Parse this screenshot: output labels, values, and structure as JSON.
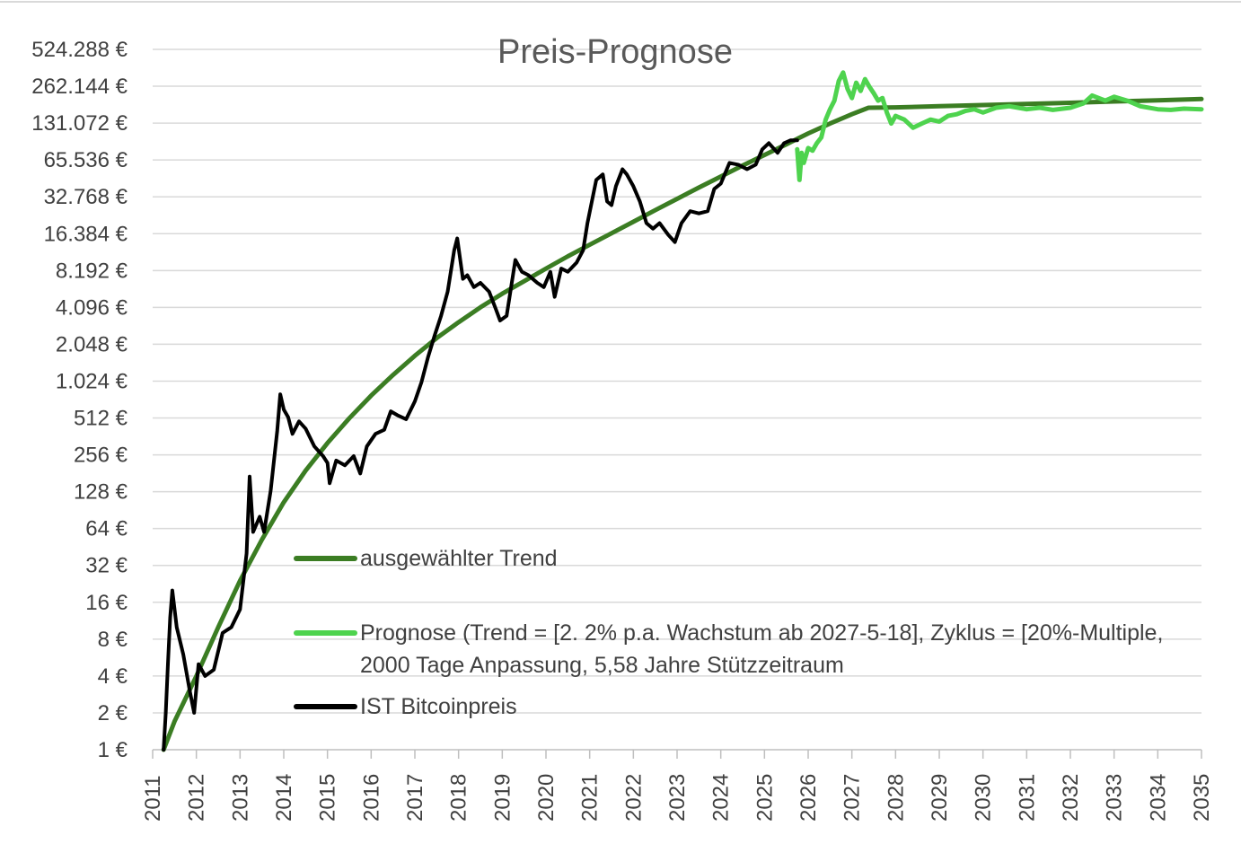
{
  "chart_data": {
    "type": "line",
    "title": "Preis-Prognose",
    "y_scale": "log2",
    "ylim": [
      1,
      524288
    ],
    "y_ticks": [
      1,
      2,
      4,
      8,
      16,
      32,
      64,
      128,
      256,
      512,
      1024,
      2048,
      4096,
      8192,
      16384,
      32768,
      65536,
      131072,
      262144,
      524288
    ],
    "y_tick_labels": [
      "1 €",
      "2 €",
      "4 €",
      "8 €",
      "16 €",
      "32 €",
      "64 €",
      "128 €",
      "256 €",
      "512 €",
      "1.024 €",
      "2.048 €",
      "4.096 €",
      "8.192 €",
      "16.384 €",
      "32.768 €",
      "65.536 €",
      "131.072 €",
      "262.144 €",
      "524.288 €"
    ],
    "xlim": [
      2011,
      2035
    ],
    "x_ticks": [
      "2011",
      "2012",
      "2013",
      "2014",
      "2015",
      "2016",
      "2017",
      "2018",
      "2019",
      "2020",
      "2021",
      "2022",
      "2023",
      "2024",
      "2025",
      "2026",
      "2027",
      "2028",
      "2029",
      "2030",
      "2031",
      "2032",
      "2033",
      "2034",
      "2035"
    ],
    "grid": true,
    "legend_position": "lower-right inside plot",
    "series": [
      {
        "name": "ausgewählter Trend",
        "color": "#3b7d23",
        "x": [
          2011.25,
          2011.5,
          2012.0,
          2012.5,
          2013.0,
          2013.5,
          2014.0,
          2014.5,
          2015.0,
          2015.5,
          2016.0,
          2016.5,
          2017.0,
          2017.5,
          2018.0,
          2018.5,
          2019.0,
          2019.5,
          2020.0,
          2020.5,
          2021.0,
          2021.5,
          2022.0,
          2022.5,
          2023.0,
          2023.5,
          2024.0,
          2024.5,
          2025.0,
          2025.5,
          2026.0,
          2026.5,
          2027.0,
          2027.38,
          2028.0,
          2029.0,
          2030.0,
          2031.0,
          2032.0,
          2033.0,
          2034.0,
          2035.0
        ],
        "values": [
          1,
          1.7,
          4,
          10,
          24,
          52,
          105,
          190,
          320,
          510,
          780,
          1150,
          1650,
          2300,
          3100,
          4100,
          5300,
          6700,
          8500,
          10700,
          13300,
          16500,
          20500,
          25500,
          31500,
          39000,
          48000,
          59000,
          72000,
          88000,
          108000,
          130000,
          155000,
          175000,
          176000,
          180000,
          184000,
          188000,
          192000,
          197000,
          201000,
          206000
        ]
      },
      {
        "name": "Prognose (Trend = [2. 2% p.a. Wachstum ab 2027-5-18], Zyklus = [20%-Multiple, 2000 Tage Anpassung, 5,58 Jahre Stützzeitraum",
        "color": "#4ed34e",
        "x": [
          2025.75,
          2025.8,
          2025.85,
          2025.9,
          2026.0,
          2026.1,
          2026.2,
          2026.3,
          2026.4,
          2026.5,
          2026.6,
          2026.7,
          2026.8,
          2026.9,
          2027.0,
          2027.1,
          2027.2,
          2027.3,
          2027.4,
          2027.5,
          2027.6,
          2027.7,
          2027.8,
          2027.9,
          2028.0,
          2028.2,
          2028.4,
          2028.6,
          2028.8,
          2029.0,
          2029.2,
          2029.4,
          2029.6,
          2029.8,
          2030.0,
          2030.3,
          2030.6,
          2031.0,
          2031.3,
          2031.6,
          2032.0,
          2032.3,
          2032.5,
          2032.8,
          2033.0,
          2033.3,
          2033.6,
          2034.0,
          2034.3,
          2034.6,
          2035.0
        ],
        "values": [
          80000,
          45000,
          75000,
          62000,
          82000,
          78000,
          90000,
          100000,
          140000,
          170000,
          200000,
          290000,
          340000,
          250000,
          210000,
          280000,
          240000,
          300000,
          260000,
          230000,
          200000,
          210000,
          160000,
          130000,
          150000,
          140000,
          120000,
          130000,
          140000,
          135000,
          150000,
          155000,
          165000,
          170000,
          160000,
          175000,
          180000,
          170000,
          175000,
          168000,
          175000,
          190000,
          220000,
          200000,
          215000,
          200000,
          180000,
          170000,
          168000,
          172000,
          170000
        ]
      },
      {
        "name": "IST Bitcoinpreis",
        "color": "#000000",
        "x": [
          2011.25,
          2011.3,
          2011.35,
          2011.4,
          2011.45,
          2011.55,
          2011.7,
          2011.85,
          2011.95,
          2012.05,
          2012.2,
          2012.4,
          2012.6,
          2012.8,
          2013.0,
          2013.15,
          2013.22,
          2013.3,
          2013.45,
          2013.55,
          2013.7,
          2013.85,
          2013.92,
          2014.0,
          2014.1,
          2014.2,
          2014.35,
          2014.5,
          2014.7,
          2014.9,
          2015.0,
          2015.05,
          2015.2,
          2015.4,
          2015.6,
          2015.75,
          2015.9,
          2016.1,
          2016.3,
          2016.45,
          2016.6,
          2016.8,
          2017.0,
          2017.15,
          2017.3,
          2017.45,
          2017.6,
          2017.75,
          2017.9,
          2017.97,
          2018.1,
          2018.2,
          2018.35,
          2018.5,
          2018.7,
          2018.85,
          2018.95,
          2019.1,
          2019.3,
          2019.45,
          2019.6,
          2019.8,
          2019.95,
          2020.1,
          2020.2,
          2020.35,
          2020.5,
          2020.7,
          2020.85,
          2020.95,
          2021.05,
          2021.15,
          2021.3,
          2021.4,
          2021.5,
          2021.6,
          2021.75,
          2021.85,
          2022.0,
          2022.15,
          2022.3,
          2022.45,
          2022.6,
          2022.8,
          2022.95,
          2023.1,
          2023.3,
          2023.5,
          2023.7,
          2023.85,
          2024.0,
          2024.2,
          2024.4,
          2024.6,
          2024.8,
          2024.95,
          2025.1,
          2025.3,
          2025.45,
          2025.6,
          2025.75
        ],
        "values": [
          1,
          2,
          5,
          12,
          20,
          10,
          6,
          3,
          2,
          5,
          4,
          4.5,
          9,
          10,
          14,
          40,
          170,
          60,
          80,
          60,
          130,
          400,
          800,
          600,
          520,
          380,
          480,
          420,
          300,
          250,
          220,
          150,
          230,
          210,
          250,
          180,
          300,
          380,
          410,
          580,
          540,
          500,
          700,
          1000,
          1600,
          2400,
          3500,
          5500,
          12000,
          15000,
          7000,
          7500,
          6000,
          6500,
          5500,
          4000,
          3200,
          3500,
          10000,
          8000,
          7500,
          6500,
          6000,
          8000,
          5000,
          8500,
          8000,
          9500,
          12000,
          20000,
          30000,
          45000,
          50000,
          30000,
          28000,
          40000,
          55000,
          50000,
          40000,
          30000,
          20000,
          18000,
          20000,
          16000,
          14000,
          20000,
          25000,
          24000,
          25000,
          38000,
          42000,
          62000,
          60000,
          55000,
          60000,
          80000,
          90000,
          75000,
          90000,
          95000,
          95000
        ]
      }
    ]
  }
}
